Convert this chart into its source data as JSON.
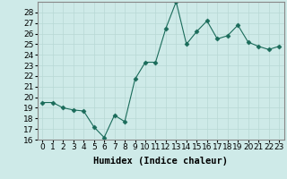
{
  "x": [
    0,
    1,
    2,
    3,
    4,
    5,
    6,
    7,
    8,
    9,
    10,
    11,
    12,
    13,
    14,
    15,
    16,
    17,
    18,
    19,
    20,
    21,
    22,
    23
  ],
  "y": [
    19.5,
    19.5,
    19.0,
    18.8,
    18.7,
    17.2,
    16.2,
    18.3,
    17.7,
    21.7,
    23.3,
    23.3,
    26.5,
    29.0,
    25.0,
    26.2,
    27.2,
    25.5,
    25.8,
    26.8,
    25.2,
    24.8,
    24.5,
    24.8
  ],
  "line_color": "#1a6b5a",
  "marker": "D",
  "marker_size": 2.5,
  "bg_color": "#ceeae8",
  "grid_color_major": "#b8d8d5",
  "grid_color_minor": "#d4ecea",
  "xlabel": "Humidex (Indice chaleur)",
  "ylim": [
    16,
    29
  ],
  "xlim": [
    -0.5,
    23.5
  ],
  "yticks": [
    16,
    17,
    18,
    19,
    20,
    21,
    22,
    23,
    24,
    25,
    26,
    27,
    28
  ],
  "xticks": [
    0,
    1,
    2,
    3,
    4,
    5,
    6,
    7,
    8,
    9,
    10,
    11,
    12,
    13,
    14,
    15,
    16,
    17,
    18,
    19,
    20,
    21,
    22,
    23
  ],
  "tick_fontsize": 6.5,
  "xlabel_fontsize": 7.5,
  "spine_color": "#888888",
  "top_grid_color": "#c8a0a0"
}
